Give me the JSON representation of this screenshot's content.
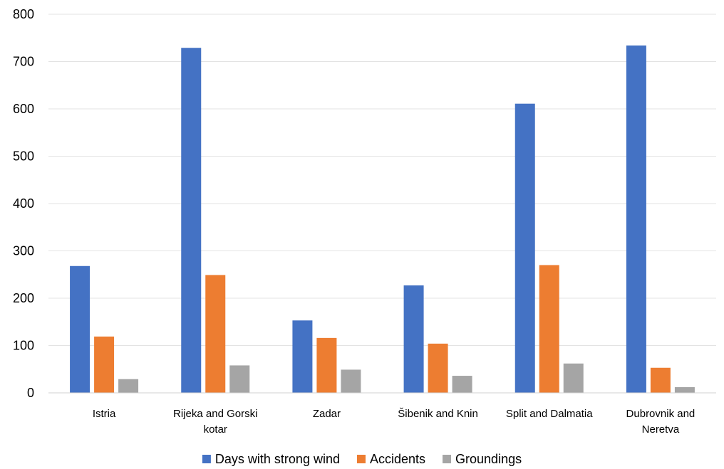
{
  "chart_data": {
    "type": "bar",
    "title": "",
    "xlabel": "",
    "ylabel": "",
    "ylim": [
      0,
      800
    ],
    "yticks": [
      0,
      100,
      200,
      300,
      400,
      500,
      600,
      700,
      800
    ],
    "grid": true,
    "legend_position": "bottom",
    "categories": [
      [
        "Istria"
      ],
      [
        "Rijeka and Gorski",
        "kotar"
      ],
      [
        "Zadar"
      ],
      [
        "Šibenik and Knin"
      ],
      [
        "Split and Dalmatia"
      ],
      [
        "Dubrovnik and",
        "Neretva"
      ]
    ],
    "series": [
      {
        "name": "Days with strong wind",
        "color": "#4472C4",
        "values": [
          268,
          729,
          153,
          227,
          611,
          734
        ]
      },
      {
        "name": "Accidents",
        "color": "#ED7D31",
        "values": [
          119,
          249,
          116,
          104,
          270,
          53
        ]
      },
      {
        "name": "Groundings",
        "color": "#A5A5A5",
        "values": [
          29,
          58,
          49,
          36,
          62,
          12
        ]
      }
    ]
  }
}
